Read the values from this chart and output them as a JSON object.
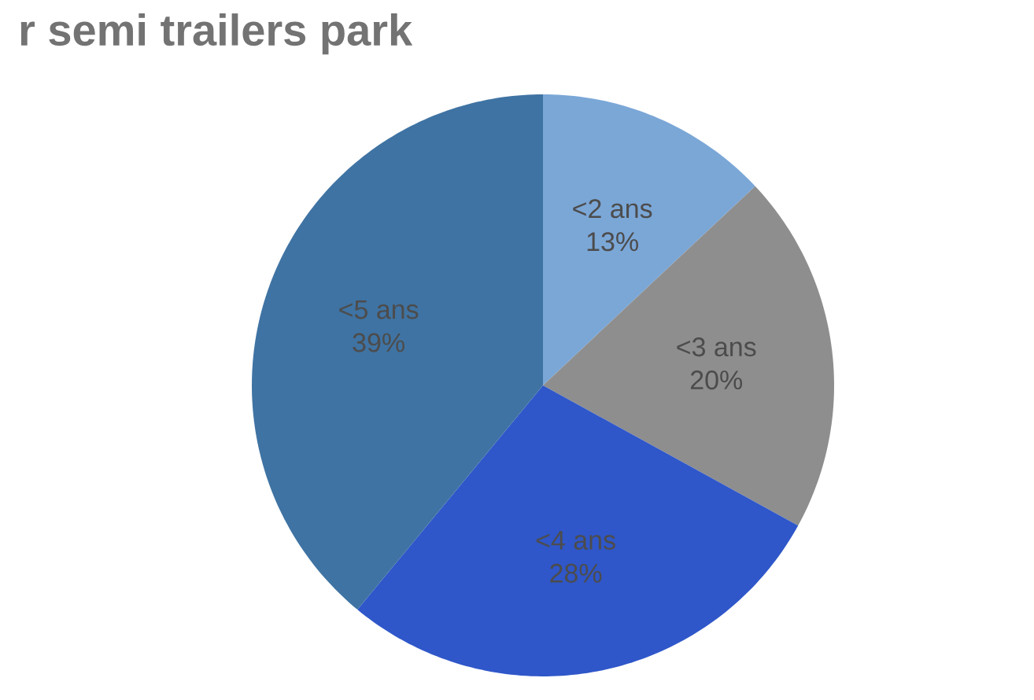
{
  "chart_data": {
    "type": "pie",
    "title": "r semi trailers park",
    "categories": [
      "<2 ans",
      "<3 ans",
      "<4 ans",
      "<5 ans"
    ],
    "values": [
      13,
      20,
      28,
      39
    ],
    "value_labels": [
      "13%",
      "20%",
      "28%",
      "39%"
    ],
    "colors": [
      "#7ba7d7",
      "#8e8e8e",
      "#2f57c9",
      "#3f73a3"
    ]
  }
}
